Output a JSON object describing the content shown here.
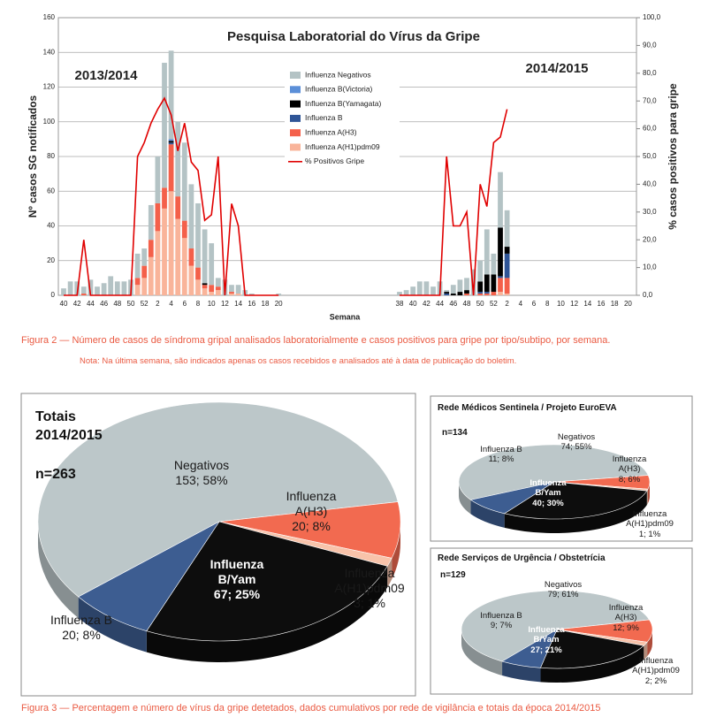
{
  "chart_data": [
    {
      "type": "bar",
      "stacked": true,
      "title": "Pesquisa Laboratorial do Vírus da Gripe",
      "annotations": [
        "2013/2014",
        "2014/2015"
      ],
      "x_label": "Semana",
      "y_label": "Nº casos SG notificados",
      "y2_label": "% casos positivos para gripe",
      "categories": [
        "40",
        null,
        "42",
        null,
        "44",
        null,
        "46",
        null,
        "48",
        null,
        "50",
        null,
        "52",
        null,
        "2",
        null,
        "4",
        null,
        "6",
        null,
        "8",
        null,
        "10",
        null,
        "12",
        null,
        "14",
        null,
        "16",
        null,
        "18",
        null,
        "20",
        null,
        null,
        null,
        null,
        null,
        null,
        null,
        null,
        null,
        null,
        null,
        null,
        null,
        null,
        null,
        null,
        null,
        "38",
        null,
        "40",
        null,
        "42",
        null,
        "44",
        null,
        "46",
        null,
        "48",
        null,
        "50",
        null,
        "52",
        null,
        "2",
        null,
        "4",
        null,
        "6",
        null,
        "8",
        null,
        "10",
        null,
        "12",
        null,
        "14",
        null,
        "16",
        null,
        "18",
        null,
        "20"
      ],
      "series": [
        {
          "name": "Influenza Negativos",
          "color": "#b4c3c5",
          "values": [
            4,
            8,
            8,
            4,
            9,
            5,
            7,
            11,
            8,
            8,
            9,
            14,
            10,
            20,
            27,
            72,
            51,
            43,
            45,
            37,
            37,
            31,
            24,
            5,
            9,
            4,
            5,
            3,
            1,
            0,
            0,
            0,
            1,
            0,
            0,
            0,
            0,
            0,
            0,
            0,
            0,
            0,
            0,
            0,
            0,
            0,
            0,
            0,
            0,
            0,
            2,
            3,
            5,
            8,
            8,
            5,
            8,
            1,
            5,
            7,
            7,
            15,
            12,
            26,
            12,
            32,
            21,
            0,
            0,
            0,
            0,
            0,
            0,
            0,
            0,
            0,
            0,
            0,
            0,
            0,
            0,
            0,
            0,
            0,
            0
          ]
        },
        {
          "name": "Influenza B(Victoria)",
          "color": "#5b8fd8",
          "values": [
            0,
            0,
            0,
            0,
            0,
            0,
            0,
            0,
            0,
            0,
            0,
            0,
            0,
            0,
            0,
            0,
            1,
            0,
            0,
            0,
            0,
            0,
            0,
            0,
            0,
            0,
            0,
            0,
            0,
            0,
            0,
            0,
            0,
            0,
            0,
            0,
            0,
            0,
            0,
            0,
            0,
            0,
            0,
            0,
            0,
            0,
            0,
            0,
            0,
            0,
            0,
            0,
            0,
            0,
            0,
            0,
            0,
            0,
            0,
            0,
            0,
            0,
            0,
            0,
            0,
            0,
            0,
            0,
            0,
            0,
            0,
            0,
            0,
            0,
            0,
            0,
            0,
            0,
            0,
            0,
            0,
            0,
            0,
            0,
            0
          ]
        },
        {
          "name": "Influenza B(Yamagata)",
          "color": "#000000",
          "values": [
            0,
            0,
            0,
            0,
            0,
            0,
            0,
            0,
            0,
            0,
            0,
            0,
            0,
            0,
            0,
            0,
            1,
            0,
            0,
            0,
            0,
            1,
            0,
            0,
            0,
            0,
            0,
            0,
            0,
            0,
            0,
            0,
            0,
            0,
            0,
            0,
            0,
            0,
            0,
            0,
            0,
            0,
            0,
            0,
            0,
            0,
            0,
            0,
            0,
            0,
            0,
            0,
            0,
            0,
            0,
            0,
            0,
            1,
            1,
            2,
            2,
            0,
            6,
            10,
            10,
            28,
            4,
            0,
            0,
            0,
            0,
            0,
            0,
            0,
            0,
            0,
            0,
            0,
            0,
            0,
            0,
            0,
            0,
            0,
            0
          ]
        },
        {
          "name": "Influenza B",
          "color": "#2f5597",
          "values": [
            0,
            0,
            0,
            0,
            0,
            0,
            0,
            0,
            0,
            0,
            0,
            0,
            0,
            0,
            0,
            0,
            1,
            0,
            0,
            0,
            0,
            0,
            0,
            0,
            0,
            0,
            0,
            0,
            0,
            0,
            0,
            0,
            0,
            0,
            0,
            0,
            0,
            0,
            0,
            0,
            0,
            0,
            0,
            0,
            0,
            0,
            0,
            0,
            0,
            0,
            0,
            0,
            0,
            0,
            0,
            0,
            0,
            1,
            0,
            0,
            0,
            0,
            1,
            1,
            0,
            1,
            14,
            0,
            0,
            0,
            0,
            0,
            0,
            0,
            0,
            0,
            0,
            0,
            0,
            0,
            0,
            0,
            0,
            0,
            0
          ]
        },
        {
          "name": "Influenza A(H3)",
          "color": "#f4604a",
          "values": [
            0,
            0,
            0,
            1,
            0,
            0,
            0,
            0,
            0,
            0,
            0,
            4,
            7,
            10,
            16,
            12,
            27,
            13,
            10,
            10,
            7,
            2,
            4,
            2,
            0,
            1,
            0,
            0,
            0,
            0,
            0,
            0,
            0,
            0,
            0,
            0,
            0,
            0,
            0,
            0,
            0,
            0,
            0,
            0,
            0,
            0,
            0,
            0,
            0,
            0,
            0,
            0,
            0,
            0,
            0,
            0,
            0,
            0,
            0,
            0,
            1,
            0,
            1,
            1,
            2,
            8,
            9,
            0,
            0,
            0,
            0,
            0,
            0,
            0,
            0,
            0,
            0,
            0,
            0,
            0,
            0,
            0,
            0,
            0,
            0
          ]
        },
        {
          "name": "Influenza A(H1)pdm09",
          "color": "#f9b49a",
          "values": [
            0,
            0,
            0,
            0,
            0,
            0,
            0,
            0,
            0,
            0,
            0,
            6,
            10,
            22,
            37,
            50,
            60,
            44,
            33,
            17,
            9,
            4,
            2,
            3,
            0,
            1,
            1,
            0,
            0,
            0,
            0,
            0,
            0,
            0,
            0,
            0,
            0,
            0,
            0,
            0,
            0,
            0,
            0,
            0,
            0,
            0,
            0,
            0,
            0,
            0,
            0,
            0,
            0,
            0,
            0,
            0,
            0,
            0,
            0,
            0,
            0,
            0,
            0,
            0,
            0,
            2,
            1,
            0,
            0,
            0,
            0,
            0,
            0,
            0,
            0,
            0,
            0,
            0,
            0,
            0,
            0,
            0,
            0,
            0,
            0
          ]
        },
        {
          "name": "% Positivos Gripe",
          "type": "line",
          "axis": "y2",
          "color": "#e00000",
          "values": [
            0,
            0,
            0,
            20,
            0,
            0,
            0,
            0,
            0,
            0,
            0,
            50,
            55,
            62,
            67,
            71,
            65,
            52,
            62,
            48,
            45,
            27,
            29,
            50,
            0,
            33,
            25,
            0,
            0,
            0,
            0,
            0,
            0,
            null,
            null,
            null,
            null,
            null,
            null,
            null,
            null,
            null,
            null,
            null,
            null,
            null,
            null,
            null,
            null,
            null,
            0,
            0,
            0,
            0,
            0,
            0,
            0,
            50,
            25,
            25,
            30,
            0,
            40,
            32,
            55,
            57,
            67,
            null,
            null,
            null,
            null,
            null,
            null,
            null,
            null,
            null,
            null,
            null,
            null,
            null,
            null,
            null,
            null,
            null,
            null
          ]
        }
      ],
      "ylim": [
        0,
        160
      ],
      "yticks": [
        0,
        20,
        40,
        60,
        80,
        100,
        120,
        140,
        160
      ],
      "y2lim": [
        0,
        100
      ],
      "y2ticks": [
        {
          "value": 0,
          "label": "0,0"
        },
        {
          "value": 10,
          "label": "10,0"
        },
        {
          "value": 20,
          "label": "20,0"
        },
        {
          "value": 30,
          "label": "30,0"
        },
        {
          "value": 40,
          "label": "40,0"
        },
        {
          "value": 50,
          "label": "50,0"
        },
        {
          "value": 60,
          "label": "60,0"
        },
        {
          "value": 70,
          "label": "70,0"
        },
        {
          "value": 80,
          "label": "80,0"
        },
        {
          "value": 90,
          "label": "90,0"
        },
        {
          "value": 100,
          "label": "100,0"
        }
      ],
      "grid": true
    },
    {
      "type": "pie",
      "title": "Totais 2014/2015",
      "subtitle": "n=263",
      "categories": [
        "Negativos",
        "Influenza A(H3)",
        "Influenza A(H1)pdm09",
        "Influenza B/Yam",
        "Influenza B"
      ],
      "values": [
        153,
        20,
        3,
        67,
        20
      ],
      "value_labels": [
        "153; 58%",
        "20; 8%",
        "3; 1%",
        "67; 25%",
        "20; 8%"
      ],
      "colors": [
        "#bcc7c9",
        "#f26a50",
        "#f8c3aa",
        "#0d0d0d",
        "#3d5d91"
      ]
    },
    {
      "type": "pie",
      "title": "Rede Médicos Sentinela / Projeto EuroEVA",
      "subtitle": "n=134",
      "categories": [
        "Negativos",
        "Influenza A(H3)",
        "Influenza A(H1)pdm09",
        "Influenza B/Yam",
        "Influenza B"
      ],
      "values": [
        74,
        8,
        1,
        40,
        11
      ],
      "value_labels": [
        "74; 55%",
        "8; 6%",
        "1; 1%",
        "40; 30%",
        "11; 8%"
      ],
      "colors": [
        "#bcc7c9",
        "#f26a50",
        "#f8c3aa",
        "#0d0d0d",
        "#3d5d91"
      ]
    },
    {
      "type": "pie",
      "title": "Rede Serviços de Urgência / Obstetrícia",
      "subtitle": "n=129",
      "categories": [
        "Negativos",
        "Influenza A(H3)",
        "Influenza A(H1)pdm09",
        "Influenza B/Yam",
        "Influenza B"
      ],
      "values": [
        79,
        12,
        2,
        27,
        9
      ],
      "value_labels": [
        "79; 61%",
        "12; 9%",
        "2; 2%",
        "27; 21%",
        "9; 7%"
      ],
      "colors": [
        "#bcc7c9",
        "#f26a50",
        "#f8c3aa",
        "#0d0d0d",
        "#3d5d91"
      ]
    }
  ],
  "figure_2_caption": "Figura 2 — Número de casos  de síndroma gripal analisados laboratorialmente e casos positivos para gripe por tipo/subtipo, por semana.",
  "figure_2_note": "Nota: Na última semana, são indicados apenas os casos recebidos e analisados até à data de publicação do boletim.",
  "figure_3_caption": "Figura 3 — Percentagem e número de vírus da gripe detetados, dados cumulativos por rede de vigilância e totais da época 2014/2015"
}
